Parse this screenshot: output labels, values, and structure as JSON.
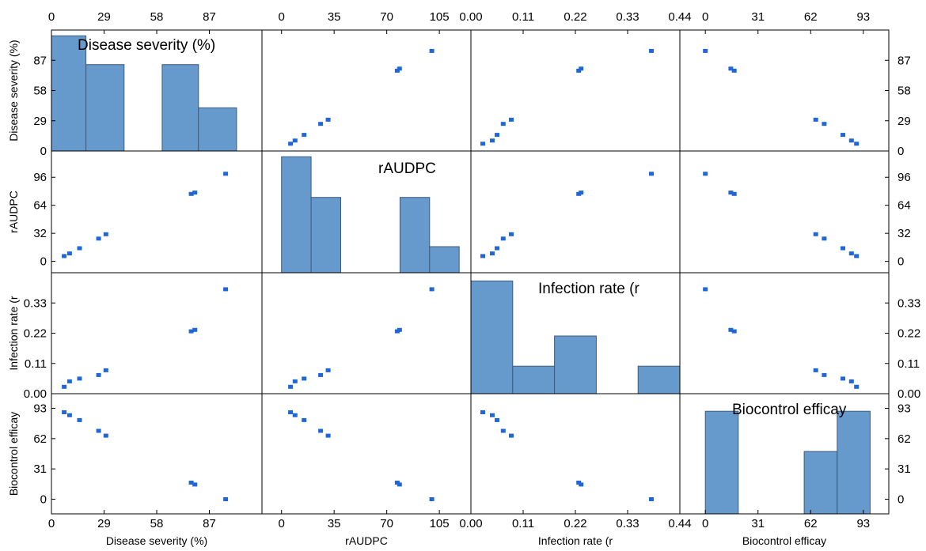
{
  "chart_data": {
    "type": "scatter-matrix",
    "variables": [
      "Disease severity (%)",
      "rAUDPC",
      "Infection rate (r",
      "Biocontrol efficay"
    ],
    "axis_ranges": [
      [
        0,
        116
      ],
      [
        -13,
        126
      ],
      [
        0,
        0.44
      ],
      [
        -15,
        108
      ]
    ],
    "axis_ticks": [
      [
        0,
        29,
        58,
        87
      ],
      [
        0,
        35,
        70,
        105
      ],
      [
        0.0,
        0.11,
        0.22,
        0.33,
        0.44
      ],
      [
        0,
        31,
        62,
        93
      ]
    ],
    "tick_labels": [
      [
        "0",
        "29",
        "58",
        "87"
      ],
      [
        "0",
        "35",
        "70",
        "105"
      ],
      [
        "0.00",
        "0.11",
        "0.22",
        "0.33",
        "0.44"
      ],
      [
        "0",
        "31",
        "62",
        "93"
      ]
    ],
    "left_ticks": [
      [
        "0",
        "29",
        "58",
        "87"
      ],
      [
        "0",
        "32",
        "64",
        "96"
      ],
      [
        "0.00",
        "0.11",
        "0.22",
        "0.33"
      ],
      [
        "0",
        "31",
        "62",
        "93"
      ]
    ],
    "left_tick_values": [
      [
        0,
        29,
        58,
        87
      ],
      [
        0,
        32,
        64,
        96
      ],
      [
        0,
        0.11,
        0.22,
        0.33
      ],
      [
        0,
        31,
        62,
        93
      ]
    ],
    "observations": [
      {
        "disease_severity": 7,
        "raudpc": 6,
        "infection_rate": 0.025,
        "biocontrol_efficacy": 89
      },
      {
        "disease_severity": 10,
        "raudpc": 9,
        "infection_rate": 0.045,
        "biocontrol_efficacy": 86
      },
      {
        "disease_severity": 15.5,
        "raudpc": 15,
        "infection_rate": 0.055,
        "biocontrol_efficacy": 81
      },
      {
        "disease_severity": 26,
        "raudpc": 26,
        "infection_rate": 0.068,
        "biocontrol_efficacy": 70
      },
      {
        "disease_severity": 30,
        "raudpc": 31,
        "infection_rate": 0.085,
        "biocontrol_efficacy": 65
      },
      {
        "disease_severity": 77,
        "raudpc": 77,
        "infection_rate": 0.227,
        "biocontrol_efficacy": 17
      },
      {
        "disease_severity": 79,
        "raudpc": 78.5,
        "infection_rate": 0.232,
        "biocontrol_efficacy": 15
      },
      {
        "disease_severity": 96,
        "raudpc": 100,
        "infection_rate": 0.38,
        "biocontrol_efficacy": 0
      }
    ],
    "histograms": [
      {
        "bins": [
          [
            0,
            19
          ],
          [
            19,
            40
          ],
          [
            40,
            61
          ],
          [
            61,
            81
          ],
          [
            81,
            102
          ]
        ],
        "heights": [
          2,
          1.5,
          0,
          1.5,
          0.75
        ],
        "max": 2.1
      },
      {
        "bins": [
          [
            0,
            19.7
          ],
          [
            19.7,
            39.4
          ],
          [
            39.4,
            59.1
          ],
          [
            59.1,
            78.8
          ],
          [
            78.8,
            98.5
          ],
          [
            98.5,
            118.2
          ]
        ],
        "heights": [
          2,
          1.3,
          0,
          0,
          1.3,
          0.45
        ],
        "max": 2.1
      },
      {
        "bins": [
          [
            0,
            0.088
          ],
          [
            0.088,
            0.176
          ],
          [
            0.176,
            0.264
          ],
          [
            0.264,
            0.352
          ],
          [
            0.352,
            0.44
          ]
        ],
        "heights": [
          2.05,
          0.5,
          1.05,
          0,
          0.5
        ],
        "max": 2.2
      },
      {
        "bins": [
          [
            0,
            19.4
          ],
          [
            19.4,
            38.8
          ],
          [
            38.8,
            58.2
          ],
          [
            58.2,
            77.6
          ],
          [
            77.6,
            97
          ]
        ],
        "heights": [
          2.22,
          0,
          0,
          1.35,
          2.22
        ],
        "max": 2.6
      }
    ],
    "diagonal_titles": [
      "Disease severity (%)",
      "rAUDPC",
      "Infection rate (r",
      "Biocontrol efficay"
    ],
    "colors": {
      "bar_fill": "#6699cc",
      "bar_stroke": "#3d5c7a",
      "point": "#1f66d6"
    }
  }
}
